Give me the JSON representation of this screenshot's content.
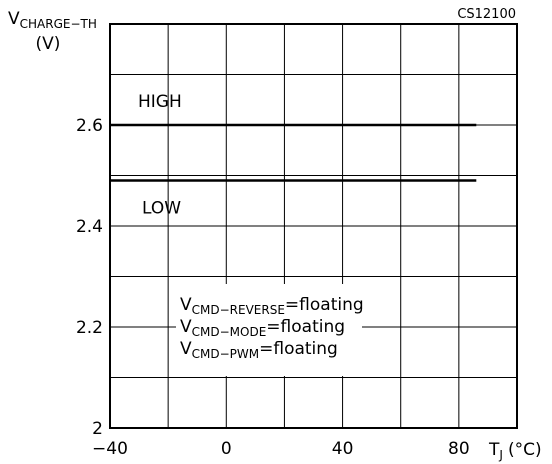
{
  "chart_data": {
    "type": "line",
    "figure_ref": "CS12100",
    "ylabel": {
      "main": "V",
      "sub": "CHARGE−TH",
      "unit": "(V)"
    },
    "xlabel": {
      "main": "T",
      "sub": "J",
      "unit": "(°C)"
    },
    "xlim": [
      -40,
      100
    ],
    "ylim": [
      2.0,
      2.8
    ],
    "x_ticks": [
      -40,
      0,
      40,
      80
    ],
    "x_tick_labels": [
      "−40",
      "0",
      "40",
      "80"
    ],
    "y_ticks": [
      2.0,
      2.2,
      2.4,
      2.6
    ],
    "y_tick_labels": [
      "2",
      "2.2",
      "2.4",
      "2.6"
    ],
    "grid": true,
    "series": [
      {
        "name": "HIGH",
        "x": [
          -40,
          86
        ],
        "y": [
          2.6,
          2.6
        ]
      },
      {
        "name": "LOW",
        "x": [
          -40,
          86
        ],
        "y": [
          2.49,
          2.49
        ]
      }
    ],
    "annotations": [
      {
        "main": "V",
        "sub": "CMD−REVERSE",
        "rest": "=floating"
      },
      {
        "main": "V",
        "sub": "CMD−MODE",
        "rest": "=floating"
      },
      {
        "main": "V",
        "sub": "CMD−PWM",
        "rest": "=floating"
      }
    ]
  }
}
